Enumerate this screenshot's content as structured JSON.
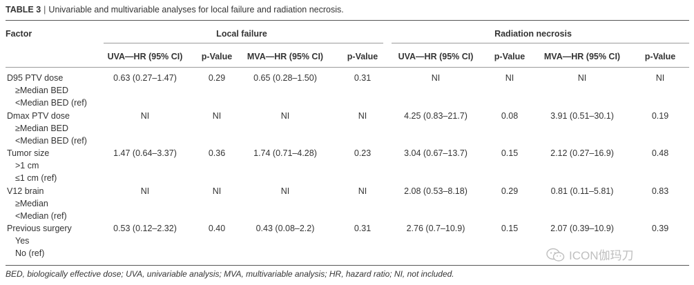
{
  "caption": {
    "number": "TABLE 3",
    "separator": "|",
    "title": "Univariable and multivariable analyses for local failure and radiation necrosis."
  },
  "header": {
    "factor": "Factor",
    "group_local": "Local failure",
    "group_necrosis": "Radiation necrosis",
    "columns": [
      "UVA—HR (95% CI)",
      "p-Value",
      "MVA—HR (95% CI)",
      "p-Value",
      "UVA—HR (95% CI)",
      "p-Value",
      "MVA—HR (95% CI)",
      "p-Value"
    ]
  },
  "rows": [
    {
      "factor": "D95 PTV dose",
      "sub": [
        "≥Median BED",
        "<Median BED (ref)"
      ],
      "values": [
        "0.63 (0.27–1.47)",
        "0.29",
        "0.65 (0.28–1.50)",
        "0.31",
        "NI",
        "NI",
        "NI",
        "NI"
      ]
    },
    {
      "factor": "Dmax PTV dose",
      "sub": [
        "≥Median BED",
        "<Median BED (ref)"
      ],
      "values": [
        "NI",
        "NI",
        "NI",
        "NI",
        "4.25 (0.83–21.7)",
        "0.08",
        "3.91 (0.51–30.1)",
        "0.19"
      ]
    },
    {
      "factor": "Tumor size",
      "sub": [
        ">1 cm",
        "≤1 cm (ref)"
      ],
      "values": [
        "1.47 (0.64–3.37)",
        "0.36",
        "1.74 (0.71–4.28)",
        "0.23",
        "3.04 (0.67–13.7)",
        "0.15",
        "2.12 (0.27–16.9)",
        "0.48"
      ]
    },
    {
      "factor": "V12 brain",
      "sub": [
        "≥Median",
        "<Median (ref)"
      ],
      "values": [
        "NI",
        "NI",
        "NI",
        "NI",
        "2.08 (0.53–8.18)",
        "0.29",
        "0.81 (0.11–5.81)",
        "0.83"
      ]
    },
    {
      "factor": "Previous surgery",
      "sub": [
        "Yes",
        "No (ref)"
      ],
      "values": [
        "0.53 (0.12–2.32)",
        "0.40",
        "0.43 (0.08–2.2)",
        "0.31",
        "2.76 (0.7–10.9)",
        "0.15",
        "2.07 (0.39–10.9)",
        "0.39"
      ]
    }
  ],
  "footnote": "BED, biologically effective dose; UVA, univariable analysis; MVA, multivariable analysis; HR, hazard ratio; NI, not included.",
  "watermark": {
    "icon": "wechat-icon",
    "text": "ICON伽玛刀"
  }
}
